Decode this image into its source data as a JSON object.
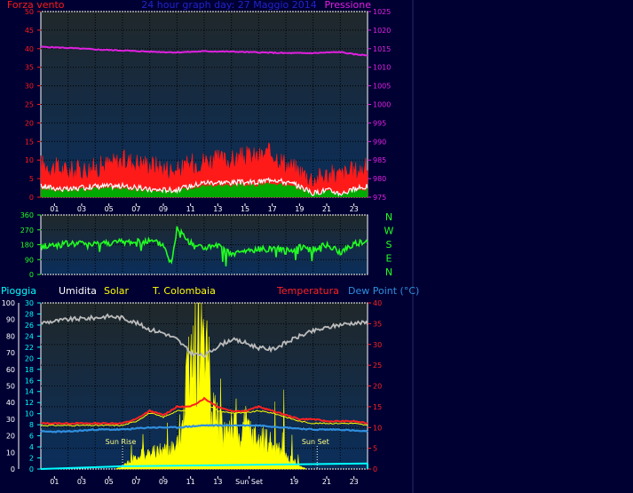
{
  "colors": {
    "bg": "#000033",
    "plot_grad_top": "#20282a",
    "plot_grad_bottom": "#0a2e5c",
    "wind": "#ff1a1a",
    "gust_white": "#ffffff",
    "wind_green": "#00aa00",
    "pressure": "#e020e0",
    "direction": "#22ff22",
    "humidity": "#bbbbbb",
    "solar": "#ffff00",
    "temperature": "#ff2222",
    "dewpoint": "#2f8fdf",
    "rain": "#00ffff",
    "title": "#2222cc",
    "pioggia_label": "#00ffff",
    "white": "#ffffff"
  },
  "chart_data": [
    {
      "type": "area",
      "title": "24 hour graph day: 27 Maggio 2014",
      "y_left_label": "Forza vento",
      "y_right_label": "Pressione",
      "ylim_left": [
        0,
        50
      ],
      "ylim_right": [
        975,
        1025
      ],
      "yticks_left": [
        "0",
        "5",
        "10",
        "15",
        "20",
        "25",
        "30",
        "35",
        "40",
        "45",
        "50"
      ],
      "yticks_right": [
        "975",
        "980",
        "985",
        "990",
        "995",
        "1000",
        "1005",
        "1010",
        "1015",
        "1020",
        "1025"
      ],
      "x_ticks": [
        "01",
        "03",
        "05",
        "07",
        "09",
        "11",
        "13",
        "15",
        "17",
        "19",
        "21",
        "23"
      ],
      "series": [
        {
          "key": "pressure",
          "x": [
            0,
            2,
            4,
            6,
            8,
            10,
            12,
            14,
            16,
            18,
            20,
            22,
            23,
            24
          ],
          "values": [
            1015.5,
            1015.2,
            1014.8,
            1014.5,
            1014.2,
            1014.0,
            1014.3,
            1014.2,
            1014.0,
            1013.8,
            1013.8,
            1014.1,
            1013.5,
            1013.2
          ]
        },
        {
          "key": "wind_gust",
          "x": [
            0,
            2,
            4,
            6,
            8,
            10,
            11,
            12,
            13,
            14,
            15,
            16,
            17,
            18,
            19,
            20,
            21,
            22,
            23,
            24
          ],
          "values": [
            8,
            6,
            7,
            9,
            8,
            6,
            8,
            9,
            9,
            9,
            10,
            10,
            11,
            8,
            6,
            4,
            5,
            5,
            6,
            7
          ]
        },
        {
          "key": "wind_avg",
          "x": [
            0,
            2,
            4,
            6,
            8,
            10,
            11,
            12,
            13,
            14,
            15,
            16,
            17,
            18,
            19,
            20,
            21,
            22,
            23,
            24
          ],
          "values": [
            3,
            2,
            3,
            3,
            2,
            2,
            3,
            4,
            4,
            4,
            4,
            4,
            5,
            4,
            3,
            1,
            2,
            1,
            2,
            3
          ]
        }
      ]
    },
    {
      "type": "scatter",
      "title": "",
      "ylim": [
        0,
        360
      ],
      "yticks": [
        "0",
        "90",
        "180",
        "270",
        "360"
      ],
      "compass_labels": [
        "N",
        "W",
        "S",
        "E",
        "N"
      ],
      "x_ticks": [
        "01",
        "03",
        "05",
        "07",
        "09",
        "11",
        "13",
        "15",
        "17",
        "19",
        "21",
        "23"
      ],
      "series": [
        {
          "key": "direction",
          "x": [
            0,
            2,
            4,
            6,
            8,
            9,
            9.6,
            10,
            11,
            12,
            13,
            14,
            15,
            16,
            17,
            18,
            19,
            20,
            21,
            22,
            23,
            24
          ],
          "values": [
            170,
            185,
            190,
            195,
            200,
            180,
            60,
            280,
            190,
            160,
            170,
            120,
            140,
            150,
            160,
            140,
            170,
            150,
            180,
            130,
            190,
            190
          ]
        }
      ]
    },
    {
      "type": "line",
      "legend": [
        "Pioggia",
        "Umidita",
        "Solar",
        "T. Colombaia",
        "Temperatura",
        "Dew Point (°C)"
      ],
      "ylim_left_outer": [
        0,
        100
      ],
      "ylim_left_inner": [
        0,
        30
      ],
      "ylim_right": [
        0,
        40
      ],
      "yticks_left_outer": [
        "0",
        "10",
        "20",
        "30",
        "40",
        "50",
        "60",
        "70",
        "80",
        "90",
        "100"
      ],
      "yticks_left_inner": [
        "0",
        "2",
        "4",
        "6",
        "8",
        "10",
        "12",
        "14",
        "16",
        "18",
        "20",
        "22",
        "24",
        "26",
        "28",
        "30"
      ],
      "yticks_right": [
        "0",
        "5",
        "10",
        "15",
        "20",
        "25",
        "30",
        "35",
        "40"
      ],
      "x_ticks": [
        "01",
        "03",
        "05",
        "07",
        "09",
        "11",
        "13",
        "Sun Set",
        "19",
        "21",
        "23"
      ],
      "annotations": {
        "sunrise": "Sun Rise",
        "sunset": "Sun Set"
      },
      "series": [
        {
          "key": "humidity",
          "x": [
            0,
            2,
            4,
            5,
            6,
            7,
            8,
            9,
            10,
            11,
            12,
            13,
            14,
            15,
            16,
            17,
            18,
            19,
            20,
            21,
            22,
            23,
            24
          ],
          "values": [
            88,
            90,
            91,
            92,
            91,
            88,
            84,
            82,
            78,
            70,
            68,
            74,
            78,
            76,
            73,
            72,
            76,
            80,
            83,
            85,
            87,
            88,
            88
          ]
        },
        {
          "key": "temperature",
          "x": [
            0,
            2,
            4,
            6,
            7,
            8,
            9,
            10,
            11,
            12,
            13,
            14,
            15,
            16,
            17,
            18,
            19,
            20,
            21,
            22,
            23,
            24
          ],
          "values": [
            11,
            11,
            11,
            11,
            12,
            14,
            13,
            15,
            15,
            17,
            15,
            14,
            14,
            15,
            14,
            13,
            12,
            12,
            11.5,
            11.5,
            11.5,
            11
          ]
        },
        {
          "key": "colombaia",
          "x": [
            0,
            2,
            4,
            6,
            7,
            8,
            9,
            10,
            11,
            12,
            13,
            14,
            15,
            16,
            17,
            18,
            19,
            20,
            21,
            22,
            23,
            24
          ],
          "values": [
            10.5,
            10.5,
            10.5,
            10.5,
            11.5,
            13.5,
            12.5,
            14,
            14,
            16,
            14,
            13.5,
            13.5,
            14,
            13.5,
            12.5,
            11.5,
            11,
            11,
            11,
            11,
            10.5
          ]
        },
        {
          "key": "dewpoint",
          "x": [
            0,
            2,
            4,
            6,
            8,
            10,
            12,
            14,
            16,
            18,
            20,
            22,
            24
          ],
          "values": [
            9,
            9,
            9.5,
            9.5,
            10,
            10,
            10.5,
            10.5,
            10.5,
            10,
            9.5,
            9.5,
            9
          ]
        },
        {
          "key": "solar",
          "x": [
            5.5,
            6,
            6.5,
            7,
            8,
            9,
            10,
            10.5,
            11,
            11.5,
            12,
            12.5,
            13,
            13.5,
            14,
            14.5,
            15,
            15.5,
            16,
            16.5,
            17,
            17.5,
            18,
            18.5,
            19,
            19.5
          ],
          "values": [
            0,
            2,
            5,
            9,
            10,
            12,
            14,
            40,
            90,
            70,
            100,
            45,
            30,
            25,
            30,
            20,
            28,
            22,
            18,
            20,
            15,
            12,
            8,
            5,
            2,
            0
          ]
        },
        {
          "key": "rain",
          "x": [
            0,
            6,
            24
          ],
          "values": [
            0,
            0.5,
            1
          ]
        }
      ]
    }
  ]
}
